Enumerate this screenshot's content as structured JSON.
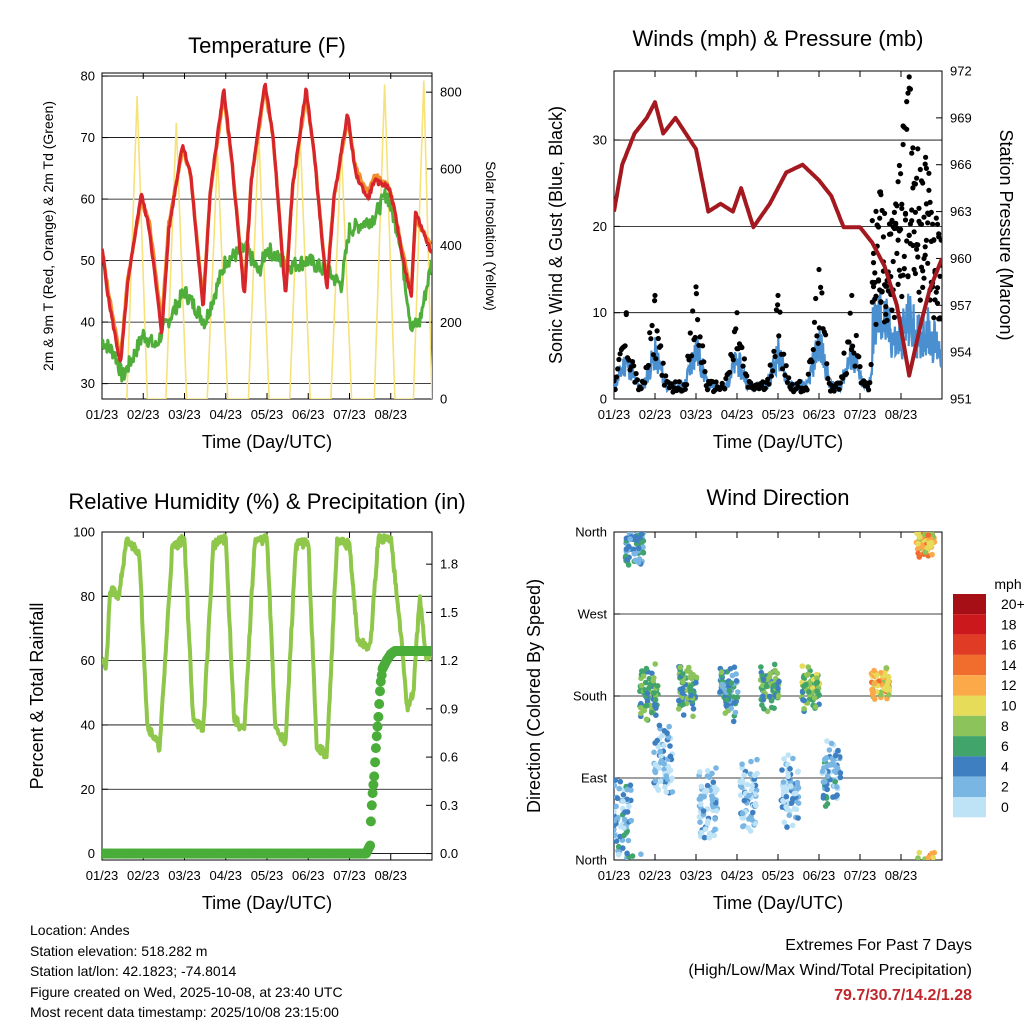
{
  "colors": {
    "temp_red": "#d7262b",
    "temp_orange": "#f28e2b",
    "dewpoint_green": "#4fae3a",
    "solar_yellow": "#f7e27a",
    "pressure_maroon": "#a4191f",
    "wind_blue": "#4a90d0",
    "gust_black": "#000000",
    "rh_lightgreen": "#8fc74a",
    "rain_green": "#4aad3a",
    "extremes_red": "#c0272d"
  },
  "chart_data": [
    {
      "type": "line",
      "title": "Temperature (F)",
      "xlabel": "Time (Day/UTC)",
      "ylabel": "2m & 9m T (Red, Orange) & 2m Td (Green)",
      "ylabel_right": "Solar Insolation (Yellow)",
      "ylim": [
        27.5,
        80.5
      ],
      "ylim_right": [
        0,
        850
      ],
      "yticks": [
        30,
        40,
        50,
        60,
        70,
        80
      ],
      "yticks_right": [
        0,
        200,
        400,
        600,
        800
      ],
      "x_tick_labels": [
        "01/23",
        "02/23",
        "03/23",
        "04/23",
        "05/23",
        "06/23",
        "07/23",
        "08/23"
      ],
      "series": [
        {
          "name": "2m T",
          "color": "red",
          "x": [
            0,
            0.15,
            0.45,
            0.62,
            0.95,
            1.15,
            1.45,
            1.62,
            1.95,
            2.15,
            2.45,
            2.62,
            2.95,
            3.15,
            3.45,
            3.62,
            3.95,
            4.15,
            4.45,
            4.62,
            4.95,
            5.15,
            5.45,
            5.62,
            5.95,
            6.15,
            6.45,
            6.6,
            6.95,
            7.1,
            7.3,
            7.5,
            7.6,
            8.0
          ],
          "values": [
            52,
            44,
            33,
            46,
            61,
            55,
            38,
            55,
            69,
            64,
            42,
            61,
            78,
            66,
            44,
            63,
            79,
            70,
            44,
            62,
            78,
            67,
            45,
            60,
            74,
            64,
            60,
            63,
            62,
            58,
            50,
            44,
            58,
            51
          ]
        },
        {
          "name": "9m T",
          "color": "orange",
          "x": [
            0,
            0.15,
            0.45,
            0.62,
            0.95,
            1.15,
            1.45,
            1.62,
            1.95,
            2.15,
            2.45,
            2.62,
            2.95,
            3.15,
            3.45,
            3.62,
            3.95,
            4.15,
            4.45,
            4.62,
            4.95,
            5.15,
            5.45,
            5.62,
            5.95,
            6.15,
            6.45,
            6.6,
            6.95,
            7.1,
            7.3,
            7.5,
            7.6,
            8.0
          ],
          "values": [
            52,
            45,
            34,
            47,
            60,
            56,
            40,
            56,
            68,
            64,
            43,
            61,
            77,
            66,
            45,
            63,
            78,
            70,
            45,
            62,
            77,
            67,
            46,
            60,
            73,
            65,
            61,
            64,
            62,
            58,
            51,
            45,
            57,
            52
          ]
        },
        {
          "name": "2m Td",
          "color": "green",
          "x": [
            0,
            0.3,
            0.5,
            0.8,
            1.0,
            1.3,
            1.5,
            2.0,
            2.5,
            3.0,
            3.5,
            3.8,
            4.0,
            4.5,
            5.0,
            5.5,
            5.8,
            6.0,
            6.3,
            6.6,
            6.9,
            7.2,
            7.5,
            7.7,
            8.0
          ],
          "values": [
            37,
            35,
            31,
            35,
            38,
            36,
            39,
            45,
            40,
            50,
            52,
            48,
            52,
            49,
            50,
            48,
            46,
            55,
            56,
            57,
            61,
            54,
            39,
            40,
            50
          ]
        },
        {
          "name": "Solar Insolation",
          "color": "yellow",
          "axis": "right",
          "x": [
            0.6,
            0.85,
            1.1,
            1.55,
            1.8,
            2.05,
            2.55,
            2.8,
            3.05,
            3.55,
            3.8,
            4.05,
            4.55,
            4.8,
            5.05,
            5.55,
            5.8,
            6.05,
            6.6,
            6.85,
            7.1,
            7.55,
            7.8,
            8.0
          ],
          "values": [
            0,
            790,
            0,
            0,
            720,
            0,
            0,
            640,
            0,
            0,
            690,
            0,
            0,
            700,
            0,
            0,
            660,
            0,
            0,
            820,
            0,
            0,
            830,
            0
          ]
        }
      ]
    },
    {
      "type": "scatter",
      "title": "Winds (mph) & Pressure (mb)",
      "xlabel": "Time (Day/UTC)",
      "ylabel": "Sonic Wind & Gust (Blue, Black)",
      "ylabel_right": "Station Pressure (Maroon)",
      "ylim": [
        0,
        38
      ],
      "ylim_right": [
        951,
        972
      ],
      "yticks": [
        0,
        10,
        20,
        30
      ],
      "yticks_right": [
        951,
        954,
        957,
        960,
        963,
        966,
        969,
        972
      ],
      "x_tick_labels": [
        "01/23",
        "02/23",
        "03/23",
        "04/23",
        "05/23",
        "06/23",
        "07/23",
        "08/23"
      ],
      "series": [
        {
          "name": "Station Pressure",
          "color": "maroon",
          "axis": "right",
          "x": [
            0,
            0.2,
            0.5,
            0.8,
            1.0,
            1.2,
            1.5,
            2.0,
            2.3,
            2.6,
            2.9,
            3.1,
            3.4,
            3.8,
            4.2,
            4.6,
            5.0,
            5.3,
            5.6,
            6.0,
            6.3,
            6.6,
            6.9,
            7.2,
            7.5,
            7.7,
            8.0
          ],
          "values": [
            963,
            966,
            968,
            969,
            970,
            968,
            969,
            967,
            963,
            963.5,
            963,
            964.5,
            962,
            963.5,
            965.5,
            966,
            965,
            964,
            962,
            962,
            961,
            959.5,
            957,
            952.5,
            956,
            958,
            960
          ]
        },
        {
          "name": "Gust (peaks)",
          "color": "black",
          "x": [
            0.3,
            1.0,
            2.0,
            3.0,
            4.0,
            5.0,
            5.8,
            6.5,
            7.2,
            7.6
          ],
          "values": [
            10,
            12,
            13,
            10,
            12,
            15,
            12,
            24,
            36,
            28
          ]
        },
        {
          "name": "Wind (peaks)",
          "color": "blue",
          "x": [
            0.3,
            1.0,
            2.0,
            3.0,
            4.0,
            5.0,
            5.8,
            6.5,
            7.2,
            7.6
          ],
          "values": [
            6,
            7,
            8,
            6,
            7,
            9,
            7,
            13,
            12,
            11
          ]
        }
      ]
    },
    {
      "type": "line",
      "title": "Relative Humidity (%) & Precipitation (in)",
      "xlabel": "Time (Day/UTC)",
      "ylabel": "Percent & Total Rainfall",
      "ylim": [
        -2,
        100
      ],
      "ylim_right": [
        -0.04,
        2.0
      ],
      "yticks": [
        0,
        20,
        40,
        60,
        80,
        100
      ],
      "yticks_right": [
        0.0,
        0.3,
        0.6,
        0.9,
        1.2,
        1.5,
        1.8
      ],
      "x_tick_labels": [
        "01/23",
        "02/23",
        "03/23",
        "04/23",
        "05/23",
        "06/23",
        "07/23",
        "08/23"
      ],
      "series": [
        {
          "name": "Relative Humidity",
          "color": "lightgreen",
          "x": [
            0,
            0.1,
            0.2,
            0.4,
            0.6,
            0.9,
            1.1,
            1.4,
            1.7,
            2.0,
            2.2,
            2.45,
            2.7,
            3.0,
            3.2,
            3.45,
            3.7,
            4.0,
            4.2,
            4.45,
            4.7,
            5.0,
            5.2,
            5.45,
            5.7,
            6.0,
            6.2,
            6.5,
            6.7,
            7.0,
            7.2,
            7.4,
            7.55,
            7.7,
            7.85,
            8.0
          ],
          "values": [
            62,
            57,
            82,
            80,
            97,
            94,
            40,
            33,
            95,
            98,
            43,
            38,
            96,
            98,
            42,
            38,
            97,
            98,
            40,
            34,
            96,
            97,
            34,
            30,
            97,
            96,
            66,
            64,
            98,
            98,
            75,
            45,
            50,
            80,
            61,
            63
          ]
        },
        {
          "name": "Total Rainfall",
          "color": "green",
          "axis": "right",
          "x": [
            0,
            6.4,
            6.5,
            6.52,
            6.55,
            6.6,
            6.65,
            6.7,
            6.75,
            6.8,
            6.9,
            7.0,
            7.1,
            8.0
          ],
          "values": [
            0,
            0,
            0.05,
            0.2,
            0.35,
            0.48,
            0.7,
            0.85,
            1.05,
            1.15,
            1.2,
            1.24,
            1.26,
            1.26
          ]
        }
      ]
    },
    {
      "type": "scatter",
      "title": "Wind Direction",
      "xlabel": "Time (Day/UTC)",
      "ylabel": "Direction (Colored By Speed)",
      "y_categories": [
        "North",
        "East",
        "South",
        "West",
        "North"
      ],
      "x_tick_labels": [
        "01/23",
        "02/23",
        "03/23",
        "04/23",
        "05/23",
        "06/23",
        "07/23",
        "08/23"
      ],
      "colorbar": {
        "unit": "mph",
        "labels": [
          "20+",
          "18",
          "16",
          "14",
          "12",
          "10",
          "8",
          "6",
          "4",
          "2",
          "0"
        ],
        "colors": [
          "#a50f15",
          "#cb181d",
          "#e03b24",
          "#f16d2d",
          "#fca94a",
          "#e6dc5a",
          "#8cc35a",
          "#41a56b",
          "#3e7fc2",
          "#7ab6e3",
          "#bfe3f6"
        ]
      },
      "clusters": [
        {
          "day": 0.2,
          "dir": 45,
          "spread": 50,
          "speed": 3
        },
        {
          "day": 0.5,
          "dir": 340,
          "spread": 30,
          "speed": 4
        },
        {
          "day": 0.85,
          "dir": 185,
          "spread": 35,
          "speed": 6
        },
        {
          "day": 1.2,
          "dir": 110,
          "spread": 45,
          "speed": 1
        },
        {
          "day": 1.8,
          "dir": 185,
          "spread": 35,
          "speed": 6
        },
        {
          "day": 2.3,
          "dir": 60,
          "spread": 45,
          "speed": 1
        },
        {
          "day": 2.8,
          "dir": 185,
          "spread": 35,
          "speed": 5
        },
        {
          "day": 3.3,
          "dir": 70,
          "spread": 45,
          "speed": 1
        },
        {
          "day": 3.8,
          "dir": 190,
          "spread": 30,
          "speed": 6
        },
        {
          "day": 4.3,
          "dir": 75,
          "spread": 45,
          "speed": 1
        },
        {
          "day": 4.8,
          "dir": 190,
          "spread": 30,
          "speed": 7
        },
        {
          "day": 5.3,
          "dir": 95,
          "spread": 40,
          "speed": 3
        },
        {
          "day": 6.5,
          "dir": 195,
          "spread": 20,
          "speed": 11
        },
        {
          "day": 7.6,
          "dir": 350,
          "spread": 20,
          "speed": 11
        }
      ]
    }
  ],
  "info": {
    "location": "Location: Andes",
    "elevation": "Station elevation: 518.282 m",
    "latlon": "Station lat/lon: 42.1823; -74.8014",
    "created": "Figure created on Wed, 2025-10-08, at 23:40 UTC",
    "recent": "Most recent data timestamp: 2025/10/08 23:15:00"
  },
  "extremes": {
    "title": "Extremes For Past 7 Days",
    "subtitle": "(High/Low/Max Wind/Total Precipitation)",
    "values": "79.7/30.7/14.2/1.28"
  }
}
